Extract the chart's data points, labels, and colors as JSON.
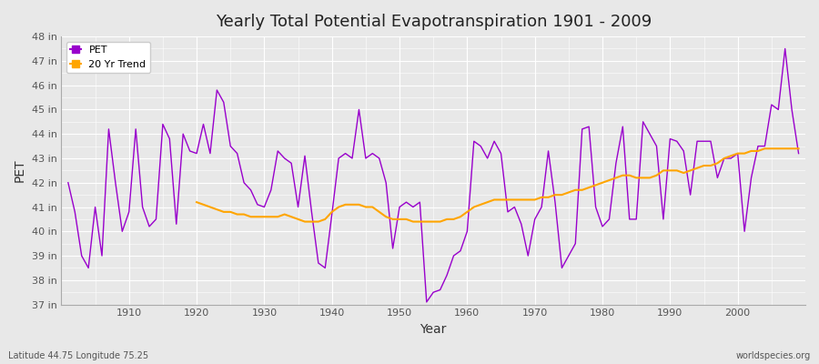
{
  "title": "Yearly Total Potential Evapotranspiration 1901 - 2009",
  "xlabel": "Year",
  "ylabel": "PET",
  "subtitle_left": "Latitude 44.75 Longitude 75.25",
  "subtitle_right": "worldspecies.org",
  "pet_color": "#9900cc",
  "trend_color": "#ffa500",
  "background_color": "#e8e8e8",
  "grid_color": "#ffffff",
  "ylim_min": 37,
  "ylim_max": 48,
  "ytick_labels": [
    "37 in",
    "38 in",
    "39 in",
    "40 in",
    "41 in",
    "42 in",
    "43 in",
    "44 in",
    "45 in",
    "46 in",
    "47 in",
    "48 in"
  ],
  "years": [
    1901,
    1902,
    1903,
    1904,
    1905,
    1906,
    1907,
    1908,
    1909,
    1910,
    1911,
    1912,
    1913,
    1914,
    1915,
    1916,
    1917,
    1918,
    1919,
    1920,
    1921,
    1922,
    1923,
    1924,
    1925,
    1926,
    1927,
    1928,
    1929,
    1930,
    1931,
    1932,
    1933,
    1934,
    1935,
    1936,
    1937,
    1938,
    1939,
    1940,
    1941,
    1942,
    1943,
    1944,
    1945,
    1946,
    1947,
    1948,
    1949,
    1950,
    1951,
    1952,
    1953,
    1954,
    1955,
    1956,
    1957,
    1958,
    1959,
    1960,
    1961,
    1962,
    1963,
    1964,
    1965,
    1966,
    1967,
    1968,
    1969,
    1970,
    1971,
    1972,
    1973,
    1974,
    1975,
    1976,
    1977,
    1978,
    1979,
    1980,
    1981,
    1982,
    1983,
    1984,
    1985,
    1986,
    1987,
    1988,
    1989,
    1990,
    1991,
    1992,
    1993,
    1994,
    1995,
    1996,
    1997,
    1998,
    1999,
    2000,
    2001,
    2002,
    2003,
    2004,
    2005,
    2006,
    2007,
    2008,
    2009
  ],
  "pet_values": [
    42.0,
    40.8,
    39.0,
    38.5,
    41.0,
    39.0,
    44.2,
    42.0,
    40.0,
    40.8,
    44.2,
    41.0,
    40.2,
    40.5,
    44.4,
    43.8,
    40.3,
    44.0,
    43.3,
    43.2,
    44.4,
    43.2,
    45.8,
    45.3,
    43.5,
    43.2,
    42.0,
    41.7,
    41.1,
    41.0,
    41.7,
    43.3,
    43.0,
    42.8,
    41.0,
    43.1,
    40.8,
    38.7,
    38.5,
    40.7,
    43.0,
    43.2,
    43.0,
    45.0,
    43.0,
    43.2,
    43.0,
    42.0,
    39.3,
    41.0,
    41.2,
    41.0,
    41.2,
    37.1,
    37.5,
    37.6,
    38.2,
    39.0,
    39.2,
    40.0,
    43.7,
    43.5,
    43.0,
    43.7,
    43.2,
    40.8,
    41.0,
    40.3,
    39.0,
    40.5,
    41.0,
    43.3,
    41.2,
    38.5,
    39.0,
    39.5,
    44.2,
    44.3,
    41.0,
    40.2,
    40.5,
    42.8,
    44.3,
    40.5,
    40.5,
    44.5,
    44.0,
    43.5,
    40.5,
    43.8,
    43.7,
    43.3,
    41.5,
    43.7,
    43.7,
    43.7,
    42.2,
    43.0,
    43.0,
    43.2,
    40.0,
    42.2,
    43.5,
    43.5,
    45.2,
    45.0,
    47.5,
    45.0,
    43.2
  ],
  "trend_years": [
    1920,
    1921,
    1922,
    1923,
    1924,
    1925,
    1926,
    1927,
    1928,
    1929,
    1930,
    1931,
    1932,
    1933,
    1934,
    1935,
    1936,
    1937,
    1938,
    1939,
    1940,
    1941,
    1942,
    1943,
    1944,
    1945,
    1946,
    1947,
    1948,
    1949,
    1950,
    1951,
    1952,
    1953,
    1954,
    1955,
    1956,
    1957,
    1958,
    1959,
    1960,
    1961,
    1962,
    1963,
    1964,
    1965,
    1966,
    1967,
    1968,
    1969,
    1970,
    1971,
    1972,
    1973,
    1974,
    1975,
    1976,
    1977,
    1978,
    1979,
    1980,
    1981,
    1982,
    1983,
    1984,
    1985,
    1986,
    1987,
    1988,
    1989,
    1990,
    1991,
    1992,
    1993,
    1994,
    1995,
    1996,
    1997,
    1998,
    1999,
    2000,
    2001,
    2002,
    2003,
    2004,
    2005,
    2006,
    2007,
    2008,
    2009
  ],
  "trend_values": [
    41.2,
    41.1,
    41.0,
    40.9,
    40.8,
    40.8,
    40.7,
    40.7,
    40.6,
    40.6,
    40.6,
    40.6,
    40.6,
    40.7,
    40.6,
    40.5,
    40.4,
    40.4,
    40.4,
    40.5,
    40.8,
    41.0,
    41.1,
    41.1,
    41.1,
    41.0,
    41.0,
    40.8,
    40.6,
    40.5,
    40.5,
    40.5,
    40.4,
    40.4,
    40.4,
    40.4,
    40.4,
    40.5,
    40.5,
    40.6,
    40.8,
    41.0,
    41.1,
    41.2,
    41.3,
    41.3,
    41.3,
    41.3,
    41.3,
    41.3,
    41.3,
    41.4,
    41.4,
    41.5,
    41.5,
    41.6,
    41.7,
    41.7,
    41.8,
    41.9,
    42.0,
    42.1,
    42.2,
    42.3,
    42.3,
    42.2,
    42.2,
    42.2,
    42.3,
    42.5,
    42.5,
    42.5,
    42.4,
    42.5,
    42.6,
    42.7,
    42.7,
    42.8,
    43.0,
    43.1,
    43.2,
    43.2,
    43.3,
    43.3,
    43.4,
    43.4,
    43.4,
    43.4,
    43.4,
    43.4
  ]
}
